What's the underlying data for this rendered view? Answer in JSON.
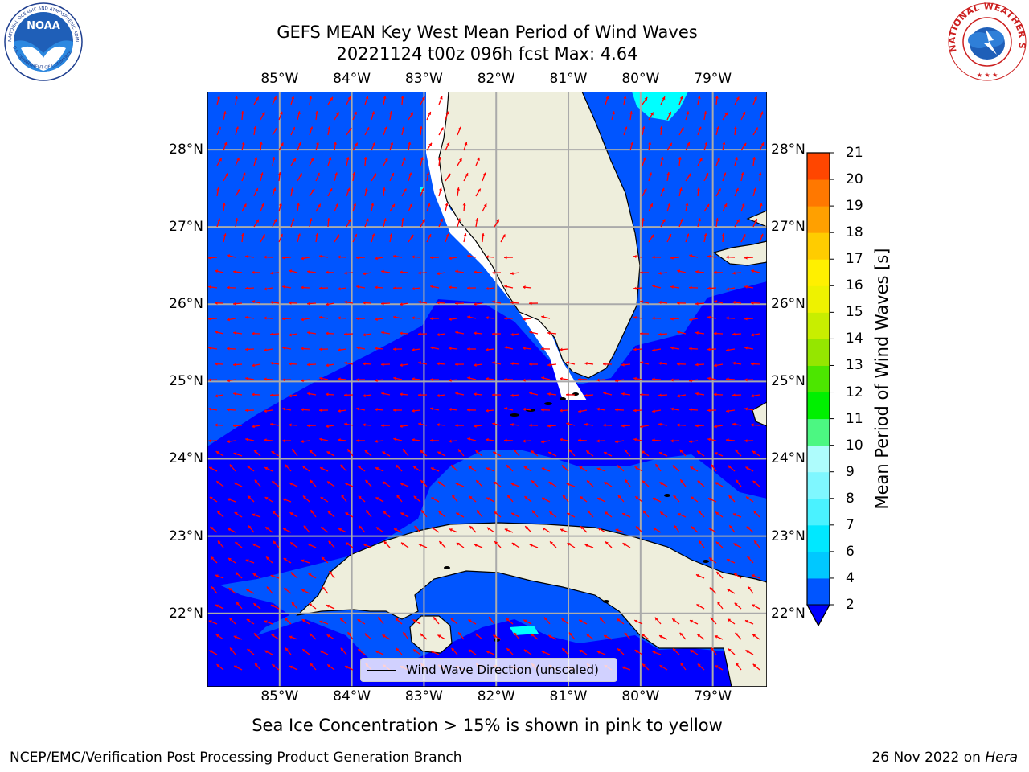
{
  "title": {
    "line1": "GEFS MEAN Key West Mean Period of Wind Waves",
    "line2": "20221124 t00z 096h fcst   Max: 4.64"
  },
  "axes": {
    "lon_labels": [
      "85°W",
      "84°W",
      "83°W",
      "82°W",
      "81°W",
      "80°W",
      "79°W"
    ],
    "lat_labels": [
      "28°N",
      "27°N",
      "26°N",
      "25°N",
      "24°N",
      "23°N",
      "22°N"
    ],
    "lon_range": [
      -86.0,
      -78.25
    ],
    "lat_range": [
      21.05,
      28.75
    ],
    "grid": true
  },
  "legend": {
    "entry": "Wind Wave Direction (unscaled)",
    "line_color": "#000000"
  },
  "colorbar": {
    "label": "Mean Period of Wind Waves [s]",
    "ticks": [
      "2",
      "4",
      "6",
      "7",
      "8",
      "9",
      "10",
      "11",
      "12",
      "13",
      "14",
      "15",
      "16",
      "17",
      "18",
      "19",
      "20",
      "21"
    ],
    "colors": [
      "#0055ff",
      "#00c8ff",
      "#00e8ff",
      "#4af2ff",
      "#7ff7ff",
      "#aefcfc",
      "#4cf782",
      "#00f000",
      "#4ce600",
      "#95e600",
      "#c8ee00",
      "#eef200",
      "#fff000",
      "#ffcc00",
      "#ffa000",
      "#ff7800",
      "#ff4600",
      "#ff1000"
    ],
    "extend": "min"
  },
  "colors": {
    "land": "#eeeedc",
    "period_0_2s": "#0000ff",
    "period_2_4s": "#0055ff",
    "period_4_6s": "#00ffff",
    "arrows": "#ff0000",
    "grid": "#aaaaaa"
  },
  "footnote": "Sea Ice Concentration > 15% is shown in pink to yellow",
  "credit": "NCEP/EMC/Verification Post Processing Product Generation Branch",
  "date": {
    "text": "26 Nov 2022 on",
    "host": "Hera"
  },
  "logos": {
    "left": "noaa-logo",
    "right": "national-weather-service-logo"
  }
}
